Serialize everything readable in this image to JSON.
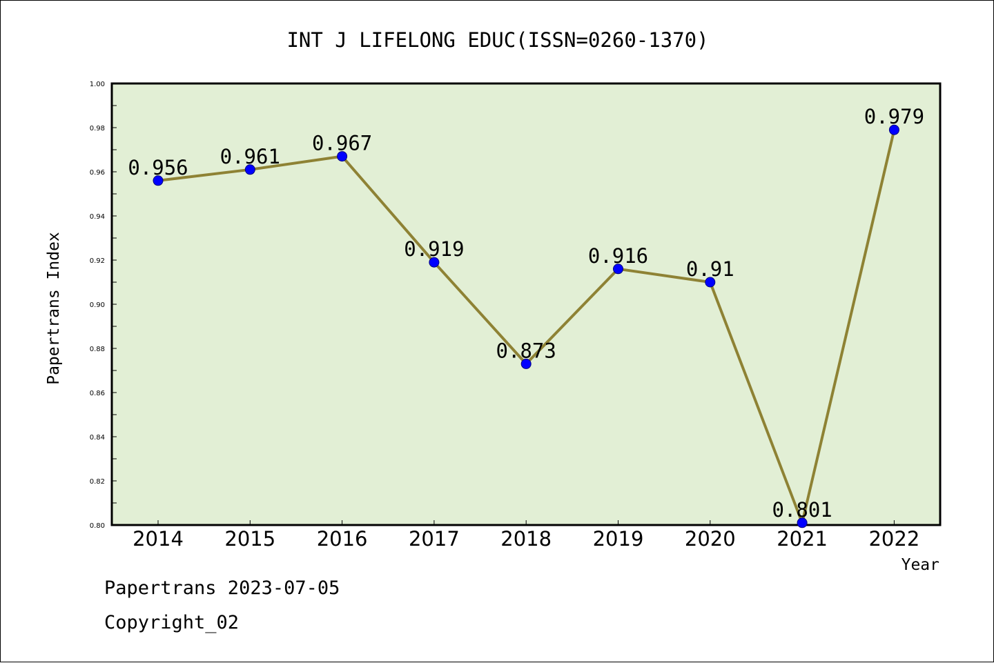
{
  "chart_data": {
    "type": "line",
    "title": "INT J LIFELONG EDUC(ISSN=0260-1370)",
    "xlabel": "Year",
    "ylabel": "Papertrans Index",
    "categories": [
      "2014",
      "2015",
      "2016",
      "2017",
      "2018",
      "2019",
      "2020",
      "2021",
      "2022"
    ],
    "series": [
      {
        "values": [
          0.956,
          0.961,
          0.967,
          0.919,
          0.873,
          0.916,
          0.91,
          0.801,
          0.979
        ],
        "data_labels": [
          "0.956",
          "0.961",
          "0.967",
          "0.919",
          "0.873",
          "0.916",
          "0.91",
          "0.801",
          "0.979"
        ]
      }
    ],
    "ylim": [
      0.8,
      1.0
    ],
    "yticks": [
      "0.80",
      "0.82",
      "0.84",
      "0.86",
      "0.88",
      "0.90",
      "0.92",
      "0.94",
      "0.96",
      "0.98",
      "1.00"
    ],
    "grid": false,
    "colors": {
      "plot_background": "#e2efd5",
      "line": "#8e8234",
      "marker": "#0000ff",
      "axis": "#000000"
    }
  },
  "footer": {
    "date_line": "Papertrans 2023-07-05",
    "copyright": "Copyright_02"
  }
}
